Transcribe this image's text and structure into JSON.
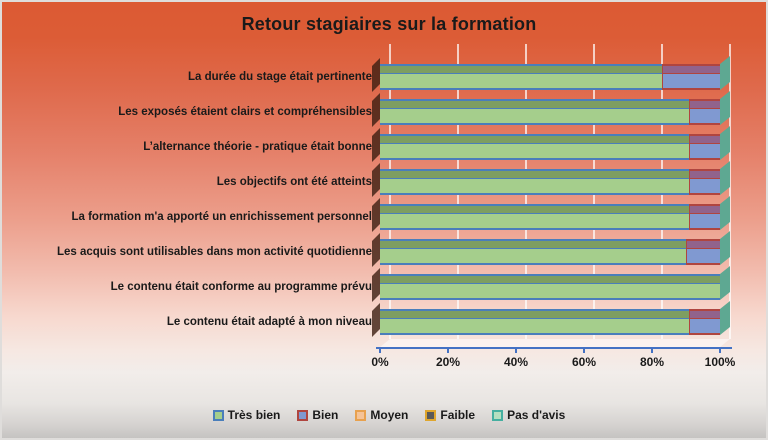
{
  "title": "Retour stagiaires sur la formation",
  "chart_data": {
    "type": "bar",
    "orientation": "horizontal",
    "stacked": true,
    "stacked_100_percent": true,
    "three_d": true,
    "title": "Retour stagiaires sur la formation",
    "xlabel": "",
    "ylabel": "",
    "xlim": [
      0,
      100
    ],
    "x_ticks": [
      "0%",
      "20%",
      "40%",
      "60%",
      "80%",
      "100%"
    ],
    "gridlines": true,
    "legend_position": "bottom",
    "categories": [
      "La durée du stage était pertinente",
      "Les exposés étaient clairs et compréhensibles",
      "L’alternance théorie - pratique était bonne",
      "Les objectifs ont été atteints",
      "La formation m'a apporté un enrichissement personnel",
      "Les acquis sont utilisables dans mon activité quotidienne",
      "Le contenu était conforme au programme prévu",
      "Le contenu était adapté à mon niveau"
    ],
    "series": [
      {
        "name": "Très bien",
        "fill": "#A5CE8C",
        "border": "#4A7EBB",
        "bevel": "#7E9E61",
        "values": [
          83,
          91,
          91,
          91,
          91,
          90,
          100,
          91
        ]
      },
      {
        "name": "Bien",
        "fill": "#8099D1",
        "border": "#B0453F",
        "bevel": "#91638C",
        "values": [
          17,
          9,
          9,
          9,
          9,
          10,
          0,
          9
        ]
      },
      {
        "name": "Moyen",
        "fill": "#F5C397",
        "border": "#E8A14E",
        "bevel": "#D9A877",
        "values": [
          0,
          0,
          0,
          0,
          0,
          0,
          0,
          0
        ]
      },
      {
        "name": "Faible",
        "fill": "#595959",
        "border": "#DFA62E",
        "bevel": "#4A4A4A",
        "values": [
          0,
          0,
          0,
          0,
          0,
          0,
          0,
          0
        ]
      },
      {
        "name": "Pas d'avis",
        "fill": "#B5DFC0",
        "border": "#45AFA0",
        "bevel": "#93C2A4",
        "values": [
          0,
          0,
          0,
          0,
          0,
          0,
          0,
          0
        ]
      }
    ],
    "style": {
      "cap_color": "#5EA892",
      "gridline_color": "rgba(255,255,255,0.7)",
      "axis_color": "#4472C4",
      "shadow_color": "rgba(60,30,18,0.8)",
      "floor_color": "rgba(255,255,255,0.5)",
      "text_color": "#1A1A1A",
      "background_top": "#DC5A33",
      "background_bottom": "#C5C3C1"
    }
  }
}
